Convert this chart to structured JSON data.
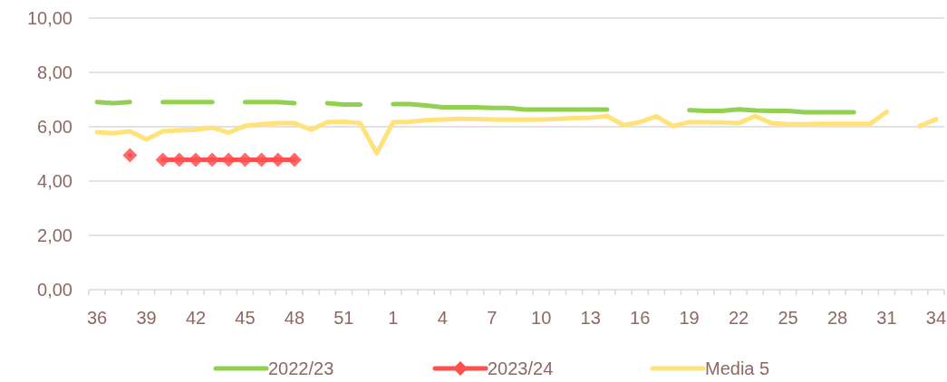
{
  "chart_data": {
    "type": "line",
    "categories": [
      "36",
      null,
      null,
      "39",
      null,
      null,
      "42",
      null,
      null,
      "45",
      null,
      null,
      "48",
      null,
      null,
      "51",
      null,
      null,
      "1",
      null,
      null,
      "4",
      null,
      null,
      "7",
      null,
      null,
      "10",
      null,
      null,
      "13",
      null,
      null,
      "16",
      null,
      null,
      "19",
      null,
      null,
      "22",
      null,
      null,
      "25",
      null,
      null,
      "28",
      null,
      null,
      "31",
      null,
      null,
      "34"
    ],
    "series": [
      {
        "name": "2022/23",
        "color": "#92d050",
        "marker": "none",
        "values": [
          6.91,
          6.87,
          6.91,
          null,
          6.91,
          6.91,
          6.91,
          6.91,
          null,
          6.91,
          6.91,
          6.91,
          6.87,
          null,
          6.87,
          6.82,
          6.82,
          null,
          6.83,
          6.83,
          6.78,
          6.72,
          6.72,
          6.72,
          6.69,
          6.69,
          6.63,
          6.63,
          6.63,
          6.63,
          6.63,
          6.63,
          null,
          null,
          null,
          null,
          6.61,
          6.58,
          6.58,
          6.64,
          6.6,
          6.58,
          6.58,
          6.53,
          6.53,
          6.53,
          6.53,
          null,
          null,
          null,
          null,
          null
        ]
      },
      {
        "name": "2023/24",
        "color": "#ff5050",
        "marker": "diamond",
        "values": [
          null,
          null,
          4.95,
          null,
          4.78,
          4.78,
          4.78,
          4.78,
          4.78,
          4.78,
          4.78,
          4.78,
          4.78,
          null,
          null,
          null,
          null,
          null,
          null,
          null,
          null,
          null,
          null,
          null,
          null,
          null,
          null,
          null,
          null,
          null,
          null,
          null,
          null,
          null,
          null,
          null,
          null,
          null,
          null,
          null,
          null,
          null,
          null,
          null,
          null,
          null,
          null,
          null,
          null,
          null,
          null,
          null
        ]
      },
      {
        "name": "Media 5",
        "color": "#ffe27a",
        "marker": "none",
        "values": [
          5.8,
          5.76,
          5.83,
          5.53,
          5.83,
          5.87,
          5.89,
          5.97,
          5.78,
          6.03,
          6.09,
          6.13,
          6.13,
          5.89,
          6.17,
          6.18,
          6.13,
          5.02,
          6.17,
          6.18,
          6.24,
          6.27,
          6.29,
          6.28,
          6.27,
          6.26,
          6.26,
          6.27,
          6.29,
          6.32,
          6.33,
          6.39,
          6.06,
          6.17,
          6.39,
          6.02,
          6.17,
          6.17,
          6.16,
          6.13,
          6.39,
          6.13,
          6.09,
          6.09,
          6.11,
          6.11,
          6.11,
          6.11,
          6.55,
          null,
          6.02,
          6.28
        ]
      }
    ],
    "ylim": [
      0,
      10
    ],
    "yticks": [
      {
        "value": 0,
        "label": "0,00"
      },
      {
        "value": 2,
        "label": "2,00"
      },
      {
        "value": 4,
        "label": "4,00"
      },
      {
        "value": 6,
        "label": "6,00"
      },
      {
        "value": 8,
        "label": "8,00"
      },
      {
        "value": 10,
        "label": "10,00"
      }
    ],
    "grid": "y",
    "legend": "bottom",
    "line_style": "solid"
  }
}
